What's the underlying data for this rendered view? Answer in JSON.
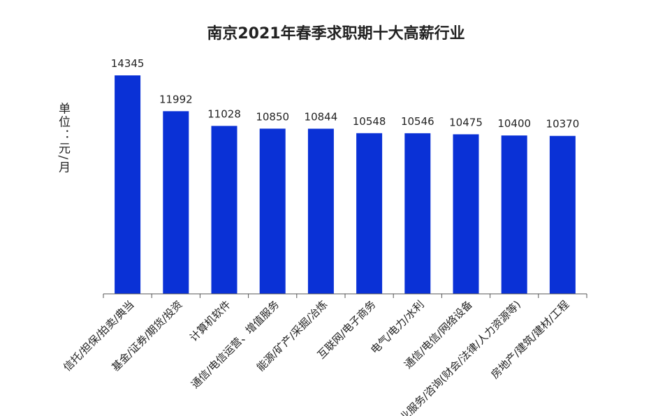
{
  "chart_data": {
    "type": "bar",
    "title": "南京2021年春季求职期十大高薪行业",
    "ylabel": "单位：元/月",
    "ylim": [
      0,
      14345
    ],
    "grid": false,
    "legend": "none",
    "bar_color": "#0a31d6",
    "categories": [
      "信托/担保/拍卖/典当",
      "基金/证券/期货/投资",
      "计算机软件",
      "通信/电信运营、增值服务",
      "能源/矿产/采掘/冶炼",
      "互联网/电子商务",
      "电气/电力/水利",
      "通信/电信/网络设备",
      "专业服务/咨询(财会/法律/人力资源等)",
      "房地产/建筑/建材/工程"
    ],
    "values": [
      14345,
      11992,
      11028,
      10850,
      10844,
      10548,
      10546,
      10475,
      10400,
      10370
    ],
    "data_labels": [
      "14345",
      "11992",
      "11028",
      "10850",
      "10844",
      "10548",
      "10546",
      "10475",
      "10400",
      "10370"
    ]
  }
}
